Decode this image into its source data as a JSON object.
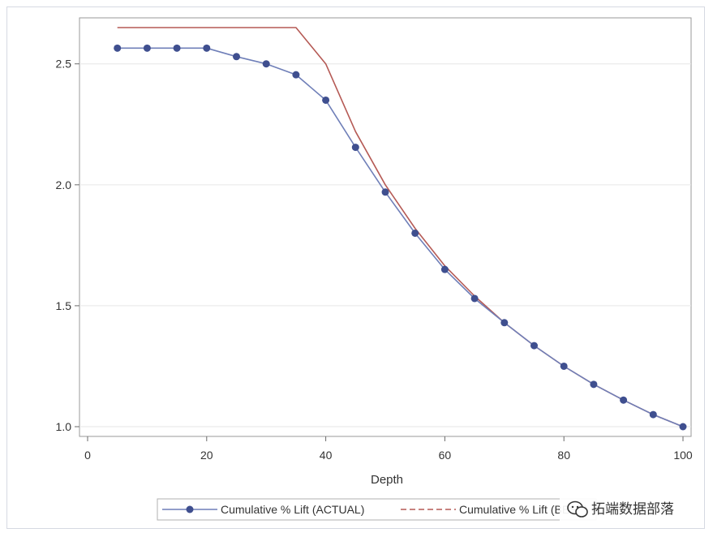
{
  "chart_data": {
    "type": "line",
    "title": "",
    "xlabel": "Depth",
    "ylabel": "",
    "xlim": [
      0,
      100
    ],
    "ylim": [
      1.0,
      2.65
    ],
    "x_ticks": [
      0,
      20,
      40,
      60,
      80,
      100
    ],
    "y_ticks": [
      1.0,
      1.5,
      2.0,
      2.5
    ],
    "y_tick_labels": [
      "1.0",
      "1.5",
      "2.0",
      "2.5"
    ],
    "grid": "horizontal",
    "legend_position": "bottom",
    "series": [
      {
        "name": "Cumulative % Lift (ACTUAL)",
        "color": "#6f7fb8",
        "marker_color": "#3f4f8f",
        "markers": true,
        "x": [
          5,
          10,
          15,
          20,
          25,
          30,
          35,
          40,
          45,
          50,
          55,
          60,
          65,
          70,
          75,
          80,
          85,
          90,
          95,
          100
        ],
        "y": [
          2.565,
          2.565,
          2.565,
          2.565,
          2.53,
          2.5,
          2.455,
          2.35,
          2.155,
          1.97,
          1.8,
          1.65,
          1.53,
          1.43,
          1.335,
          1.25,
          1.175,
          1.11,
          1.05,
          1.0
        ]
      },
      {
        "name": "Cumulative % Lift (BEST)",
        "color": "#b55a55",
        "markers": false,
        "x": [
          5,
          10,
          15,
          20,
          25,
          30,
          35,
          40,
          45,
          50,
          55,
          60,
          65,
          70,
          75,
          80,
          85,
          90,
          95,
          100
        ],
        "y": [
          2.65,
          2.65,
          2.65,
          2.65,
          2.65,
          2.65,
          2.65,
          2.5,
          2.22,
          2.0,
          1.82,
          1.665,
          1.54,
          1.43,
          1.335,
          1.25,
          1.175,
          1.11,
          1.05,
          1.0
        ]
      }
    ]
  },
  "watermark": {
    "text": "拓端数据部落",
    "icon": "wechat-icon"
  }
}
